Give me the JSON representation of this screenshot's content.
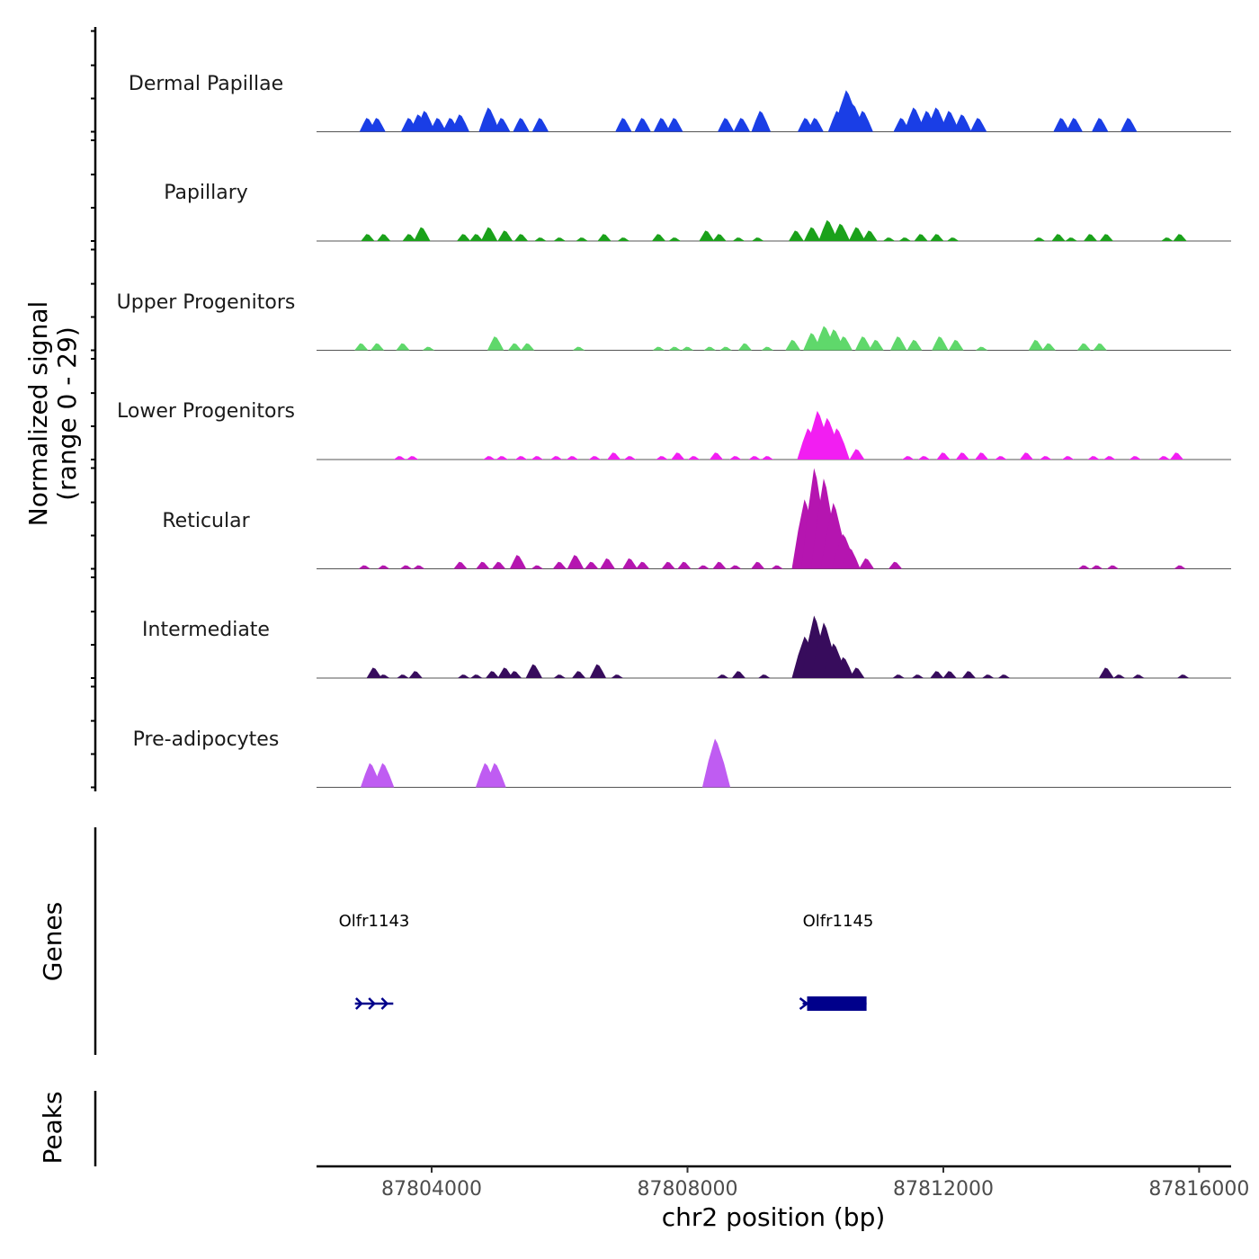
{
  "chart_data": {
    "type": "area",
    "title": "",
    "signal_axis_label_line1": "Normalized signal",
    "signal_axis_label_line2": "(range 0 - 29)",
    "ylim": [
      0,
      29
    ],
    "xlabel": "chr2 position (bp)",
    "xlim": [
      87802200,
      87816500
    ],
    "x_ticks": [
      87804000,
      87808000,
      87812000,
      87816000
    ],
    "x_tick_labels": [
      "87804000",
      "87808000",
      "87812000",
      "87816000"
    ],
    "tracks": [
      {
        "name": "Dermal Papillae",
        "color": "#1a3ee6",
        "peaks": [
          [
            87803000,
            4
          ],
          [
            87803150,
            4
          ],
          [
            87803650,
            4
          ],
          [
            87803800,
            5
          ],
          [
            87803900,
            6
          ],
          [
            87804100,
            4
          ],
          [
            87804300,
            4
          ],
          [
            87804450,
            5
          ],
          [
            87804900,
            7
          ],
          [
            87805100,
            4
          ],
          [
            87805400,
            4
          ],
          [
            87805700,
            4
          ],
          [
            87807000,
            4
          ],
          [
            87807300,
            4
          ],
          [
            87807600,
            4
          ],
          [
            87807800,
            4
          ],
          [
            87808600,
            4
          ],
          [
            87808850,
            4
          ],
          [
            87809150,
            6
          ],
          [
            87809850,
            4
          ],
          [
            87810000,
            4
          ],
          [
            87810350,
            6
          ],
          [
            87810500,
            12
          ],
          [
            87810600,
            8
          ],
          [
            87810750,
            6
          ],
          [
            87811350,
            4
          ],
          [
            87811550,
            7
          ],
          [
            87811750,
            6
          ],
          [
            87811900,
            7
          ],
          [
            87812100,
            6
          ],
          [
            87812300,
            5
          ],
          [
            87812550,
            4
          ],
          [
            87813850,
            4
          ],
          [
            87814050,
            4
          ],
          [
            87814450,
            4
          ],
          [
            87814900,
            4
          ]
        ]
      },
      {
        "name": "Papillary",
        "color": "#1aa11a",
        "peaks": [
          [
            87803000,
            2
          ],
          [
            87803250,
            2
          ],
          [
            87803650,
            2
          ],
          [
            87803850,
            4
          ],
          [
            87804500,
            2
          ],
          [
            87804700,
            2
          ],
          [
            87804900,
            4
          ],
          [
            87805150,
            3
          ],
          [
            87805400,
            2
          ],
          [
            87805700,
            1
          ],
          [
            87806000,
            1
          ],
          [
            87806350,
            1
          ],
          [
            87806700,
            2
          ],
          [
            87807000,
            1
          ],
          [
            87807550,
            2
          ],
          [
            87807800,
            1
          ],
          [
            87808300,
            3
          ],
          [
            87808500,
            2
          ],
          [
            87808800,
            1
          ],
          [
            87809100,
            1
          ],
          [
            87809700,
            3
          ],
          [
            87809950,
            4
          ],
          [
            87810200,
            6
          ],
          [
            87810400,
            5
          ],
          [
            87810650,
            4
          ],
          [
            87810850,
            3
          ],
          [
            87811150,
            1
          ],
          [
            87811400,
            1
          ],
          [
            87811650,
            2
          ],
          [
            87811900,
            2
          ],
          [
            87812150,
            1
          ],
          [
            87813500,
            1
          ],
          [
            87813800,
            2
          ],
          [
            87814000,
            1
          ],
          [
            87814300,
            2
          ],
          [
            87814550,
            2
          ],
          [
            87815500,
            1
          ],
          [
            87815700,
            2
          ]
        ]
      },
      {
        "name": "Upper Progenitors",
        "color": "#5fd86b",
        "peaks": [
          [
            87802900,
            2
          ],
          [
            87803150,
            2
          ],
          [
            87803550,
            2
          ],
          [
            87803950,
            1
          ],
          [
            87805000,
            4
          ],
          [
            87805300,
            2
          ],
          [
            87805500,
            2
          ],
          [
            87806300,
            1
          ],
          [
            87807550,
            1
          ],
          [
            87807800,
            1
          ],
          [
            87808000,
            1
          ],
          [
            87808350,
            1
          ],
          [
            87808600,
            1
          ],
          [
            87808900,
            2
          ],
          [
            87809250,
            1
          ],
          [
            87809650,
            3
          ],
          [
            87809950,
            5
          ],
          [
            87810150,
            7
          ],
          [
            87810300,
            6
          ],
          [
            87810450,
            4
          ],
          [
            87810750,
            4
          ],
          [
            87810950,
            3
          ],
          [
            87811300,
            4
          ],
          [
            87811550,
            3
          ],
          [
            87811950,
            4
          ],
          [
            87812200,
            3
          ],
          [
            87812600,
            1
          ],
          [
            87813450,
            3
          ],
          [
            87813650,
            2
          ],
          [
            87814200,
            2
          ],
          [
            87814450,
            2
          ]
        ]
      },
      {
        "name": "Lower Progenitors",
        "color": "#f21ef2",
        "peaks": [
          [
            87803500,
            1
          ],
          [
            87803700,
            1
          ],
          [
            87804900,
            1
          ],
          [
            87805100,
            1
          ],
          [
            87805400,
            1
          ],
          [
            87805650,
            1
          ],
          [
            87805950,
            1
          ],
          [
            87806200,
            1
          ],
          [
            87806550,
            1
          ],
          [
            87806850,
            2
          ],
          [
            87807100,
            1
          ],
          [
            87807600,
            1
          ],
          [
            87807850,
            2
          ],
          [
            87808100,
            1
          ],
          [
            87808450,
            2
          ],
          [
            87808750,
            1
          ],
          [
            87809050,
            1
          ],
          [
            87809250,
            1
          ],
          [
            87809900,
            9
          ],
          [
            87810050,
            14
          ],
          [
            87810200,
            12
          ],
          [
            87810350,
            9
          ],
          [
            87810650,
            3
          ],
          [
            87811450,
            1
          ],
          [
            87811700,
            1
          ],
          [
            87812000,
            2
          ],
          [
            87812300,
            2
          ],
          [
            87812600,
            2
          ],
          [
            87812900,
            1
          ],
          [
            87813300,
            2
          ],
          [
            87813600,
            1
          ],
          [
            87813950,
            1
          ],
          [
            87814350,
            1
          ],
          [
            87814600,
            1
          ],
          [
            87815000,
            1
          ],
          [
            87815450,
            1
          ],
          [
            87815650,
            2
          ]
        ]
      },
      {
        "name": "Reticular",
        "color": "#b515b0",
        "peaks": [
          [
            87802950,
            1
          ],
          [
            87803250,
            1
          ],
          [
            87803600,
            1
          ],
          [
            87803800,
            1
          ],
          [
            87804450,
            2
          ],
          [
            87804800,
            2
          ],
          [
            87805050,
            2
          ],
          [
            87805350,
            4
          ],
          [
            87805650,
            1
          ],
          [
            87806000,
            2
          ],
          [
            87806250,
            4
          ],
          [
            87806500,
            2
          ],
          [
            87806750,
            3
          ],
          [
            87807100,
            3
          ],
          [
            87807300,
            2
          ],
          [
            87807700,
            2
          ],
          [
            87807950,
            2
          ],
          [
            87808250,
            1
          ],
          [
            87808500,
            2
          ],
          [
            87808750,
            1
          ],
          [
            87809100,
            2
          ],
          [
            87809400,
            1
          ],
          [
            87809850,
            20
          ],
          [
            87810000,
            29
          ],
          [
            87810150,
            26
          ],
          [
            87810300,
            19
          ],
          [
            87810450,
            10
          ],
          [
            87810550,
            6
          ],
          [
            87810800,
            3
          ],
          [
            87811250,
            2
          ],
          [
            87814200,
            1
          ],
          [
            87814400,
            1
          ],
          [
            87814650,
            1
          ],
          [
            87815700,
            1
          ]
        ]
      },
      {
        "name": "Intermediate",
        "color": "#370c5c",
        "peaks": [
          [
            87803100,
            3
          ],
          [
            87803250,
            1
          ],
          [
            87803550,
            1
          ],
          [
            87803750,
            2
          ],
          [
            87804500,
            1
          ],
          [
            87804700,
            1
          ],
          [
            87804950,
            2
          ],
          [
            87805150,
            3
          ],
          [
            87805300,
            2
          ],
          [
            87805600,
            4
          ],
          [
            87806000,
            1
          ],
          [
            87806300,
            2
          ],
          [
            87806600,
            4
          ],
          [
            87806900,
            1
          ],
          [
            87808550,
            1
          ],
          [
            87808800,
            2
          ],
          [
            87809200,
            1
          ],
          [
            87809850,
            12
          ],
          [
            87810000,
            18
          ],
          [
            87810150,
            16
          ],
          [
            87810300,
            10
          ],
          [
            87810450,
            6
          ],
          [
            87810650,
            3
          ],
          [
            87811300,
            1
          ],
          [
            87811600,
            1
          ],
          [
            87811900,
            2
          ],
          [
            87812100,
            2
          ],
          [
            87812400,
            2
          ],
          [
            87812700,
            1
          ],
          [
            87812950,
            1
          ],
          [
            87814550,
            3
          ],
          [
            87814750,
            1
          ],
          [
            87815050,
            1
          ],
          [
            87815750,
            1
          ]
        ]
      },
      {
        "name": "Pre-adipocytes",
        "color": "#bf5cf2",
        "peaks": [
          [
            87803050,
            7
          ],
          [
            87803250,
            7
          ],
          [
            87804850,
            7
          ],
          [
            87805000,
            7
          ],
          [
            87808450,
            14
          ]
        ]
      }
    ],
    "genes_axis_label": "Genes",
    "genes": [
      {
        "name": "Olfr1143",
        "start": 87802800,
        "end": 87803400,
        "strand": "+",
        "type": "intron-arrows"
      },
      {
        "name": "Olfr1145",
        "start": 87809800,
        "end": 87810800,
        "strand": "+",
        "type": "exon-block"
      }
    ],
    "peaks_axis_label": "Peaks"
  }
}
